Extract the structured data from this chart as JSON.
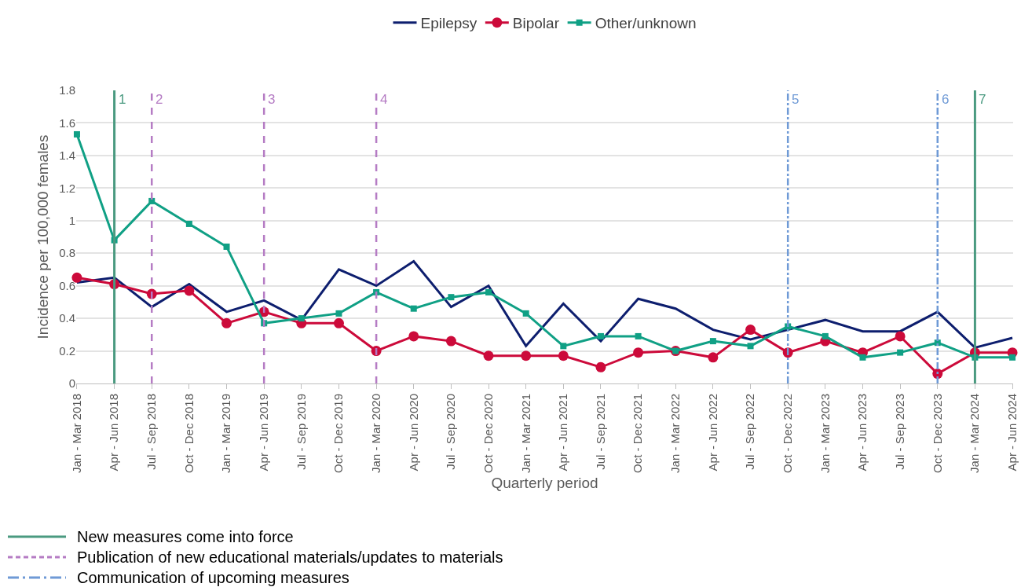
{
  "chart_data": {
    "type": "line",
    "xlabel": "Quarterly period",
    "ylabel": "Incidence per 100,000 females",
    "categories": [
      "Jan - Mar 2018",
      "Apr - Jun 2018",
      "Jul - Sep 2018",
      "Oct - Dec 2018",
      "Jan - Mar 2019",
      "Apr - Jun 2019",
      "Jul - Sep 2019",
      "Oct - Dec 2019",
      "Jan - Mar 2020",
      "Apr - Jun 2020",
      "Jul - Sep 2020",
      "Oct - Dec 2020",
      "Jan - Mar 2021",
      "Apr - Jun 2021",
      "Jul - Sep 2021",
      "Oct - Dec 2021",
      "Jan - Mar 2022",
      "Apr - Jun 2022",
      "Jul - Sep 2022",
      "Oct - Dec 2022",
      "Jan - Mar 2023",
      "Apr - Jun 2023",
      "Jul - Sep 2023",
      "Oct - Dec 2023",
      "Jan - Mar 2024",
      "Apr - Jun 2024"
    ],
    "series": [
      {
        "name": "Epilepsy",
        "color": "#0d1e6e",
        "marker": "none",
        "values": [
          0.62,
          0.65,
          0.47,
          0.61,
          0.44,
          0.51,
          0.39,
          0.7,
          0.6,
          0.75,
          0.47,
          0.6,
          0.23,
          0.49,
          0.26,
          0.52,
          0.46,
          0.33,
          0.27,
          0.33,
          0.39,
          0.32,
          0.32,
          0.44,
          0.22,
          0.28
        ]
      },
      {
        "name": "Bipolar",
        "color": "#cc0a3a",
        "marker": "circle",
        "values": [
          0.65,
          0.61,
          0.55,
          0.57,
          0.37,
          0.44,
          0.37,
          0.37,
          0.2,
          0.29,
          0.26,
          0.17,
          0.17,
          0.17,
          0.1,
          0.19,
          0.2,
          0.16,
          0.33,
          0.19,
          0.26,
          0.19,
          0.29,
          0.06,
          0.19,
          0.19
        ]
      },
      {
        "name": "Other/unknown",
        "color": "#10a085",
        "marker": "square",
        "values": [
          1.53,
          0.88,
          1.12,
          0.98,
          0.84,
          0.37,
          0.4,
          0.43,
          0.56,
          0.46,
          0.53,
          0.56,
          0.43,
          0.23,
          0.29,
          0.29,
          0.2,
          0.26,
          0.23,
          0.35,
          0.29,
          0.16,
          0.19,
          0.25,
          0.16,
          0.16
        ]
      }
    ],
    "ylim": [
      0,
      1.8
    ],
    "yticks": [
      0,
      0.2,
      0.4,
      0.6,
      0.8,
      1,
      1.2,
      1.4,
      1.6,
      1.8
    ],
    "grid": "y",
    "legend": "top",
    "line_style": "solid",
    "ref_lines": [
      {
        "axis": "x",
        "value": "Apr - Jun 2018",
        "label": "1",
        "color": "#4a9a80",
        "line_style": "solid"
      },
      {
        "axis": "x",
        "value": "Jul - Sep 2018",
        "label": "2",
        "color": "#b57cc4",
        "line_style": "dashed"
      },
      {
        "axis": "x",
        "value": "Apr - Jun 2019",
        "label": "3",
        "color": "#b57cc4",
        "line_style": "dashed"
      },
      {
        "axis": "x",
        "value": "Jan - Mar 2020",
        "label": "4",
        "color": "#b57cc4",
        "line_style": "dashed"
      },
      {
        "axis": "x",
        "value": "Oct - Dec 2022",
        "label": "5",
        "color": "#6f9ad6",
        "line_style": "dashdot"
      },
      {
        "axis": "x",
        "value": "Oct - Dec 2023",
        "label": "6",
        "color": "#6f9ad6",
        "line_style": "dashdot"
      },
      {
        "axis": "x",
        "value": "Jan - Mar 2024",
        "label": "7",
        "color": "#4a9a80",
        "line_style": "solid"
      }
    ],
    "annotations": [
      "New measures come into force",
      "Publication of new educational materials/updates to materials",
      "Communication of upcoming measures"
    ]
  }
}
